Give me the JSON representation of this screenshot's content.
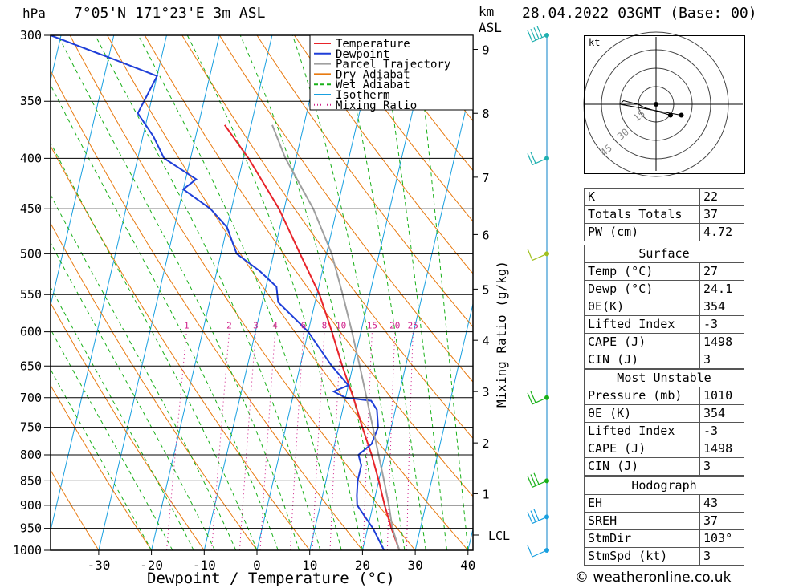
{
  "header": {
    "location": "7°05'N  171°23'E  3m  ASL",
    "datetime": "28.04.2022  03GMT  (Base: 00)",
    "pressure_unit": "hPa",
    "km_label": "km",
    "asl_label": "ASL"
  },
  "axes": {
    "xlabel": "Dewpoint / Temperature (°C)",
    "right_label": "Mixing Ratio (g/kg)",
    "pressure_ticks": [
      "300",
      "350",
      "400",
      "450",
      "500",
      "550",
      "600",
      "650",
      "700",
      "750",
      "800",
      "850",
      "900",
      "950",
      "1000"
    ],
    "temp_ticks": [
      "-30",
      "-20",
      "-10",
      "0",
      "10",
      "20",
      "30",
      "40"
    ],
    "km_ticks": [
      "9",
      "8",
      "7",
      "6",
      "5",
      "4",
      "3",
      "2",
      "1"
    ],
    "lcl_label": "LCL",
    "mixing_ratio_labels": [
      "1",
      "2",
      "3",
      "4",
      "6",
      "8",
      "10",
      "15",
      "20",
      "25"
    ]
  },
  "legend": {
    "items": [
      {
        "label": "Temperature",
        "color": "#e8242a",
        "style": "solid"
      },
      {
        "label": "Dewpoint",
        "color": "#1f3fd8",
        "style": "solid"
      },
      {
        "label": "Parcel Trajectory",
        "color": "#a0a0a0",
        "style": "solid"
      },
      {
        "label": "Dry Adiabat",
        "color": "#e87a10",
        "style": "solid"
      },
      {
        "label": "Wet Adiabat",
        "color": "#19b019",
        "style": "dashed"
      },
      {
        "label": "Isotherm",
        "color": "#19a0e0",
        "style": "solid"
      },
      {
        "label": "Mixing Ratio",
        "color": "#d0208a",
        "style": "dotted"
      }
    ]
  },
  "hodograph": {
    "unit": "kt",
    "ring_labels": [
      "15",
      "30",
      "45"
    ]
  },
  "indices": {
    "basic": [
      [
        "K",
        "22"
      ],
      [
        "Totals Totals",
        "37"
      ],
      [
        "PW (cm)",
        "4.72"
      ]
    ],
    "surface_title": "Surface",
    "surface": [
      [
        "Temp (°C)",
        "27"
      ],
      [
        "Dewp (°C)",
        "24.1"
      ],
      [
        "θE(K)",
        "354"
      ],
      [
        "Lifted Index",
        "-3"
      ],
      [
        "CAPE (J)",
        "1498"
      ],
      [
        "CIN (J)",
        "3"
      ]
    ],
    "mu_title": "Most Unstable",
    "mu": [
      [
        "Pressure (mb)",
        "1010"
      ],
      [
        "θE (K)",
        "354"
      ],
      [
        "Lifted Index",
        "-3"
      ],
      [
        "CAPE (J)",
        "1498"
      ],
      [
        "CIN (J)",
        "3"
      ]
    ],
    "hodo_title": "Hodograph",
    "hodo": [
      [
        "EH",
        "43"
      ],
      [
        "SREH",
        "37"
      ],
      [
        "StmDir",
        "103°"
      ],
      [
        "StmSpd (kt)",
        "3"
      ]
    ]
  },
  "credit": "© weatheronline.co.uk",
  "chart_data": {
    "type": "line",
    "y_axis": "pressure (hPa), log scale",
    "ylim": [
      1000,
      300
    ],
    "xlim": [
      -40,
      40
    ],
    "series": [
      {
        "name": "Temperature",
        "pressure": [
          1000,
          950,
          900,
          850,
          800,
          750,
          700,
          650,
          600,
          550,
          500,
          450,
          400,
          370
        ],
        "values": [
          27.0,
          24.5,
          22.2,
          20.0,
          17.5,
          14.5,
          11.5,
          8.0,
          4.5,
          0.5,
          -5.0,
          -11.0,
          -19.0,
          -25.0
        ]
      },
      {
        "name": "Dewpoint",
        "pressure": [
          1000,
          950,
          900,
          880,
          850,
          820,
          800,
          780,
          750,
          720,
          705,
          700,
          690,
          680,
          650,
          600,
          560,
          540,
          520,
          500,
          490,
          470,
          450,
          430,
          420,
          400,
          380,
          360,
          330,
          320,
          300
        ],
        "values": [
          24.1,
          21.0,
          17.0,
          16.5,
          16.0,
          16.0,
          15.0,
          17.0,
          17.5,
          16.5,
          15.0,
          10.0,
          7.5,
          10.0,
          6.0,
          0.0,
          -7.0,
          -8.0,
          -12.0,
          -17.0,
          -18.0,
          -20.0,
          -24.0,
          -30.0,
          -28.0,
          -35.0,
          -38.0,
          -42.0,
          -40.0,
          -47.0,
          -62.0
        ]
      },
      {
        "name": "Parcel Trajectory",
        "pressure": [
          1000,
          950,
          900,
          850,
          800,
          750,
          700,
          650,
          600,
          550,
          500,
          450,
          400,
          370
        ],
        "values": [
          27.0,
          24.7,
          23.0,
          21.0,
          18.8,
          16.5,
          14.0,
          11.3,
          8.3,
          4.9,
          1.0,
          -4.5,
          -12.0,
          -16.0
        ]
      }
    ],
    "mixing_ratio_lines_g_per_kg": [
      1,
      2,
      3,
      4,
      6,
      8,
      10,
      15,
      20,
      25
    ],
    "wind_barbs": [
      {
        "pressure": 1000,
        "speed_kt": 5
      },
      {
        "pressure": 925,
        "speed_kt": 15
      },
      {
        "pressure": 850,
        "speed_kt": 15
      },
      {
        "pressure": 700,
        "speed_kt": 10
      },
      {
        "pressure": 500,
        "speed_kt": 5
      },
      {
        "pressure": 400,
        "speed_kt": 10
      },
      {
        "pressure": 300,
        "speed_kt": 20
      }
    ],
    "hodograph_points_kt": [
      [
        4,
        -3
      ],
      [
        -3,
        -1
      ],
      [
        -5,
        0
      ],
      [
        -9,
        1
      ],
      [
        -10,
        0
      ],
      [
        7,
        -3
      ]
    ]
  }
}
